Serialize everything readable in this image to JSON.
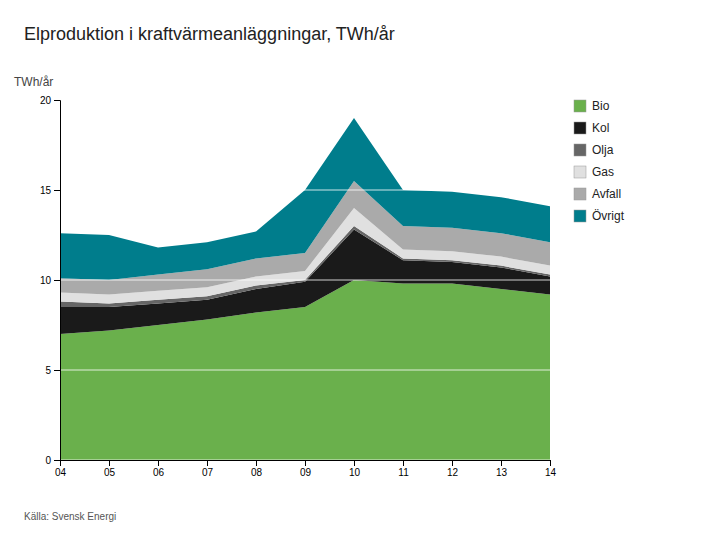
{
  "chart_data": {
    "type": "area",
    "stacked": true,
    "title": "Elproduktion i kraftvärmeanläggningar, TWh/år",
    "ylabel": "TWh/år",
    "source": "Källa: Svensk Energi",
    "x": [
      2004,
      2005,
      2006,
      2007,
      2008,
      2009,
      2010,
      2011,
      2012,
      2013,
      2014
    ],
    "series": [
      {
        "name": "Bio",
        "color": "#6ab04c",
        "values": [
          7.0,
          7.2,
          7.5,
          7.8,
          8.2,
          8.5,
          10.0,
          9.8,
          9.8,
          9.5,
          9.2
        ]
      },
      {
        "name": "Kol",
        "color": "#1a1a1a",
        "values": [
          1.5,
          1.3,
          1.2,
          1.1,
          1.3,
          1.4,
          2.8,
          1.3,
          1.2,
          1.2,
          1.0
        ]
      },
      {
        "name": "Olja",
        "color": "#666666",
        "values": [
          0.3,
          0.2,
          0.2,
          0.2,
          0.2,
          0.1,
          0.2,
          0.1,
          0.1,
          0.1,
          0.1
        ]
      },
      {
        "name": "Gas",
        "color": "#e0e0e0",
        "values": [
          0.5,
          0.5,
          0.5,
          0.5,
          0.5,
          0.5,
          1.0,
          0.5,
          0.5,
          0.5,
          0.5
        ]
      },
      {
        "name": "Avfall",
        "color": "#aaaaaa",
        "values": [
          0.8,
          0.8,
          0.9,
          1.0,
          1.0,
          1.0,
          1.5,
          1.3,
          1.3,
          1.3,
          1.3
        ]
      },
      {
        "name": "Övrigt",
        "color": "#007d8c",
        "values": [
          2.5,
          2.5,
          1.5,
          1.5,
          1.5,
          3.5,
          3.5,
          2.0,
          2.0,
          2.0,
          2.0
        ]
      }
    ],
    "xlim": [
      2004,
      2014
    ],
    "xticks": [
      {
        "value": 2004,
        "label": "04"
      },
      {
        "value": 2005,
        "label": "05"
      },
      {
        "value": 2006,
        "label": "06"
      },
      {
        "value": 2007,
        "label": "07"
      },
      {
        "value": 2008,
        "label": "08"
      },
      {
        "value": 2009,
        "label": "09"
      },
      {
        "value": 2010,
        "label": "10"
      },
      {
        "value": 2011,
        "label": "11"
      },
      {
        "value": 2012,
        "label": "12"
      },
      {
        "value": 2013,
        "label": "13"
      },
      {
        "value": 2014,
        "label": "14"
      }
    ],
    "ylim": [
      0,
      20
    ],
    "yticks": [
      0,
      5,
      10,
      15,
      20
    ],
    "grid": true,
    "legend": "right"
  }
}
